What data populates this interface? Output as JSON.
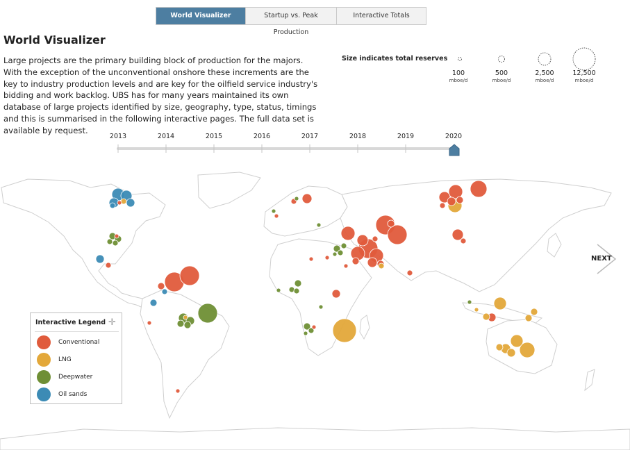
{
  "tabs": [
    {
      "label": "World Visualizer",
      "active": true
    },
    {
      "label": "Startup vs. Peak Production",
      "active": false
    },
    {
      "label": "Interactive Totals",
      "active": false
    }
  ],
  "title": "World Visualizer",
  "description": "Large projects are the primary building block of production for the majors. With the exception of the unconventional onshore these increments are the key to industry production levels and are key for the oilfield service industry's bidding and work backlog. UBS has for many years maintained its own database of large projects identified by size, geography, type, status, timings and this is summarised in the following interactive pages. The full data set is available by request.",
  "size_legend": {
    "title": "Size indicates total reserves",
    "items": [
      {
        "value": "100",
        "unit": "mboe/d"
      },
      {
        "value": "500",
        "unit": "mboe/d"
      },
      {
        "value": "2,500",
        "unit": "mboe/d"
      },
      {
        "value": "12,500",
        "unit": "mboe/d"
      }
    ]
  },
  "timeline": {
    "years": [
      "2013",
      "2014",
      "2015",
      "2016",
      "2017",
      "2018",
      "2019",
      "2020"
    ],
    "selected": "2020"
  },
  "next_label": "NEXT",
  "legend": {
    "title": "Interactive Legend",
    "items": [
      {
        "label": "Conventional",
        "color": "#e05b3c"
      },
      {
        "label": "LNG",
        "color": "#e3a83a"
      },
      {
        "label": "Deepwater",
        "color": "#6f8f35"
      },
      {
        "label": "Oil sands",
        "color": "#3c8bb5"
      }
    ]
  },
  "colors": {
    "accent": "#4d7ea1",
    "conventional": "#e05b3c",
    "lng": "#e3a83a",
    "deepwater": "#6f8f35",
    "oil_sands": "#3c8bb5"
  }
}
